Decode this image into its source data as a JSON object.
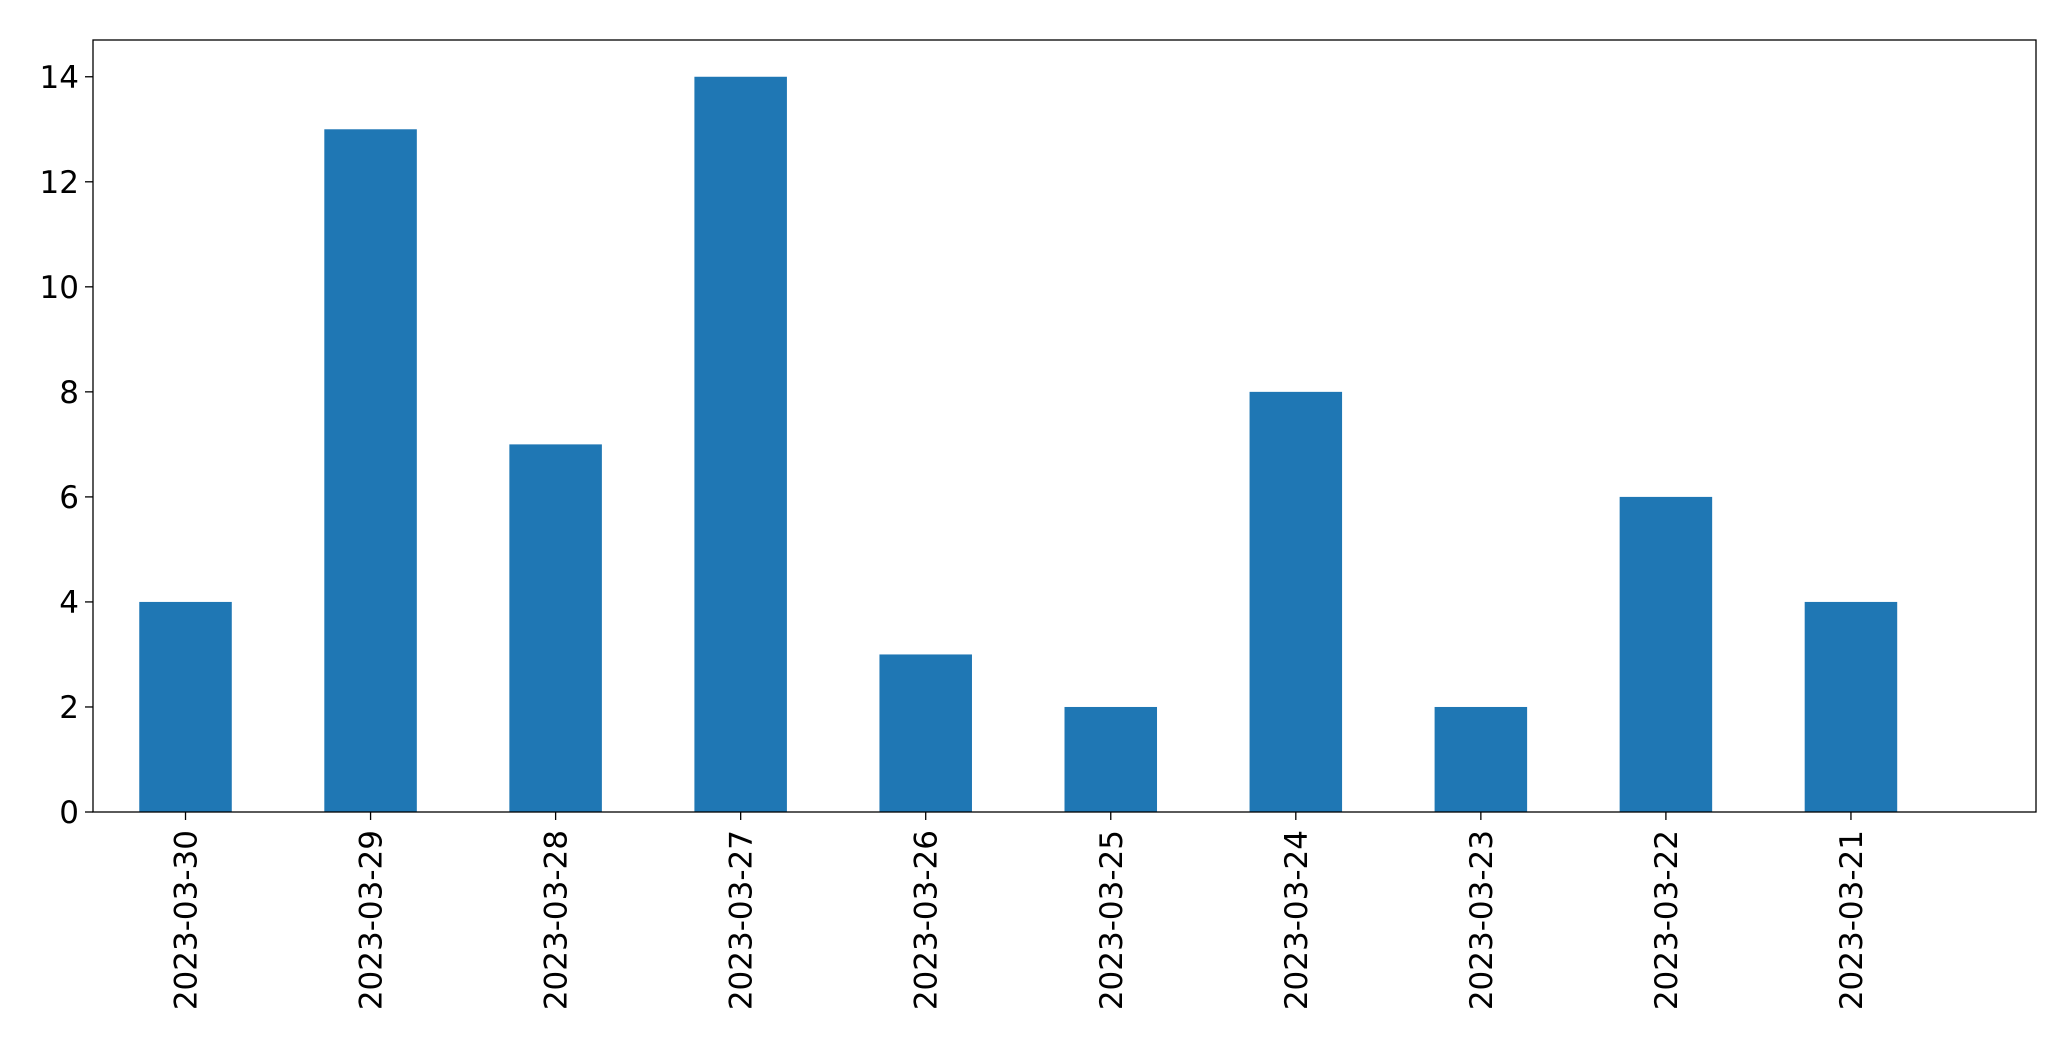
{
  "chart_data": {
    "type": "bar",
    "categories": [
      "2023-03-30",
      "2023-03-29",
      "2023-03-28",
      "2023-03-27",
      "2023-03-26",
      "2023-03-25",
      "2023-03-24",
      "2023-03-23",
      "2023-03-22",
      "2023-03-21"
    ],
    "values": [
      4,
      13,
      7,
      14,
      3,
      2,
      8,
      2,
      6,
      4
    ],
    "title": "",
    "xlabel": "",
    "ylabel": "",
    "ylim": [
      0,
      14.7
    ],
    "yticks": [
      0,
      2,
      4,
      6,
      8,
      10,
      12,
      14
    ],
    "grid": false,
    "legend": "none",
    "bar_color": "#1f77b4"
  }
}
